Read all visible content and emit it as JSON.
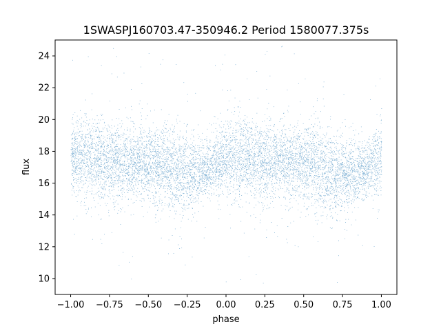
{
  "chart_data": {
    "type": "scatter",
    "title": "1SWASPJ160703.47-350946.2 Period 1580077.375s",
    "xlabel": "phase",
    "ylabel": "flux",
    "xlim": [
      -1.1,
      1.1
    ],
    "ylim": [
      9.0,
      25.0
    ],
    "xticks": [
      -1.0,
      -0.75,
      -0.5,
      -0.25,
      0.0,
      0.25,
      0.5,
      0.75,
      1.0
    ],
    "xtick_labels": [
      "−1.00",
      "−0.75",
      "−0.50",
      "−0.25",
      "0.00",
      "0.25",
      "0.50",
      "0.75",
      "1.00"
    ],
    "yticks": [
      10,
      12,
      14,
      16,
      18,
      20,
      22,
      24
    ],
    "ytick_labels": [
      "10",
      "12",
      "14",
      "16",
      "18",
      "20",
      "22",
      "24"
    ],
    "grid": false,
    "legend": "none",
    "marker_color": "#1f77b4",
    "series": [
      {
        "phase_range": [
          -1.0,
          1.0
        ],
        "flux_range": [
          9.7,
          24.8
        ],
        "approx_points": 40000,
        "band_profile": {
          "phase": [
            -1.0,
            -0.9,
            -0.75,
            -0.6,
            -0.5,
            -0.4,
            -0.3,
            -0.2,
            -0.1,
            0.0,
            0.1,
            0.25,
            0.4,
            0.5,
            0.6,
            0.7,
            0.8,
            0.9,
            1.0
          ],
          "center": [
            17.6,
            17.6,
            17.4,
            17.3,
            17.2,
            17.0,
            16.6,
            16.6,
            16.9,
            17.5,
            17.6,
            17.4,
            17.3,
            17.2,
            17.0,
            16.6,
            16.6,
            16.9,
            17.5
          ],
          "spread": [
            1.1,
            1.3,
            1.2,
            1.1,
            1.2,
            1.3,
            1.3,
            1.0,
            0.9,
            1.1,
            1.3,
            1.2,
            1.1,
            1.2,
            1.3,
            1.3,
            1.0,
            0.9,
            1.1
          ]
        }
      }
    ]
  }
}
